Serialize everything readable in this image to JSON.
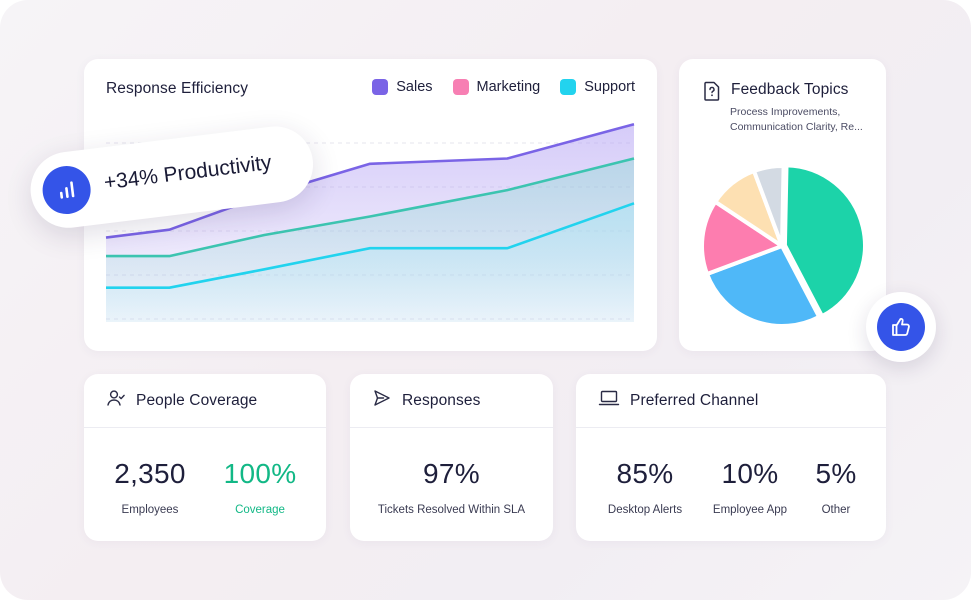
{
  "efficiency": {
    "title": "Response Efficiency",
    "legend": [
      {
        "label": "Sales",
        "color": "#7a64e6"
      },
      {
        "label": "Marketing",
        "color": "#f77fb3"
      },
      {
        "label": "Support",
        "color": "#22d3ee"
      }
    ]
  },
  "chart_data": {
    "type": "area",
    "grid": true,
    "legend_placement": "top-right",
    "x": [
      0,
      1,
      2,
      3,
      4,
      5
    ],
    "series": [
      {
        "name": "Sales",
        "values": [
          52,
          55,
          68,
          80,
          82,
          95
        ]
      },
      {
        "name": "Marketing",
        "values": [
          45,
          45,
          53,
          60,
          70,
          82
        ]
      },
      {
        "name": "Support",
        "values": [
          33,
          33,
          40,
          48,
          48,
          65
        ]
      }
    ]
  },
  "productivity": {
    "text": "+34% Productivity",
    "icon": "bar-chart-icon"
  },
  "topics": {
    "title": "Feedback Topics",
    "subtitle": "Process Improvements, Communication Clarity, Re...",
    "icon": "question-doc-icon",
    "pie": [
      {
        "value": 42,
        "color": "#1cd3a9"
      },
      {
        "value": 27,
        "color": "#4fb8f8"
      },
      {
        "value": 15,
        "color": "#fd7daf"
      },
      {
        "value": 10,
        "color": "#fde0b2"
      },
      {
        "value": 6,
        "color": "#d3dae3"
      }
    ]
  },
  "thumb": {
    "icon": "thumbs-up-icon"
  },
  "people": {
    "title": "People Coverage",
    "icon": "user-check-icon",
    "employees_value": "2,350",
    "employees_label": "Employees",
    "coverage_value": "100%",
    "coverage_label": "Coverage"
  },
  "responses": {
    "title": "Responses",
    "icon": "send-icon",
    "value": "97%",
    "label": "Tickets Resolved Within SLA"
  },
  "channel": {
    "title": "Preferred Channel",
    "icon": "laptop-icon",
    "items": [
      {
        "value": "85%",
        "label": "Desktop Alerts"
      },
      {
        "value": "10%",
        "label": "Employee App"
      },
      {
        "value": "5%",
        "label": "Other"
      }
    ]
  },
  "colors": {
    "accent": "#3454e8",
    "green": "#12b886"
  }
}
